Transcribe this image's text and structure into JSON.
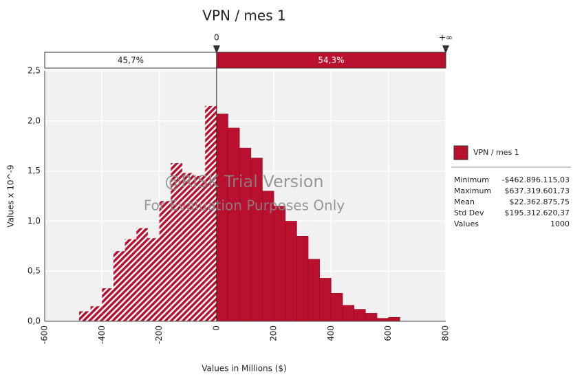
{
  "chart_data": {
    "type": "histogram",
    "title": "VPN / mes 1",
    "xlabel": "Values in Millions ($)",
    "ylabel": "Values x 10^-9",
    "bins": [
      -480,
      -440,
      -400,
      -360,
      -320,
      -280,
      -240,
      -200,
      -160,
      -120,
      -80,
      -40,
      0,
      40,
      80,
      120,
      160,
      200,
      240,
      280,
      320,
      360,
      400,
      440,
      480,
      520,
      560,
      600,
      640
    ],
    "values": [
      0.1,
      0.15,
      0.33,
      0.7,
      0.82,
      0.93,
      0.83,
      1.2,
      1.58,
      1.48,
      1.45,
      2.15,
      2.07,
      1.93,
      1.73,
      1.63,
      1.3,
      1.15,
      1.0,
      0.85,
      0.62,
      0.43,
      0.28,
      0.16,
      0.12,
      0.08,
      0.03,
      0.04
    ],
    "color": "#b8102e",
    "xlim": [
      -600,
      800
    ],
    "xticks": [
      -600,
      -400,
      -200,
      0,
      200,
      400,
      600,
      800
    ],
    "ylim": [
      0,
      2.5
    ],
    "yticks": [
      {
        "value": 0,
        "label": "0,0"
      },
      {
        "value": 0.5,
        "label": "0,5"
      },
      {
        "value": 1,
        "label": "1,0"
      },
      {
        "value": 1.5,
        "label": "1,5"
      },
      {
        "value": 2,
        "label": "2,0"
      },
      {
        "value": 2.5,
        "label": "2,5"
      }
    ],
    "grid": true,
    "delimiter": 0,
    "delimiter_labels": [
      "0",
      "+∞"
    ],
    "delimiter_percents": [
      45.7,
      54.3
    ],
    "delimiter_percent_labels": [
      "45,7%",
      "54,3%"
    ],
    "watermark": [
      "@RISK Trial Version",
      "For Evaluation Purposes Only"
    ],
    "legend": "VPN / mes 1",
    "stats": [
      [
        "Minimum",
        "-$462.896.115,03"
      ],
      [
        "Maximum",
        "$637.319.601,73"
      ],
      [
        "Mean",
        "$22.362.875,75"
      ],
      [
        "Std Dev",
        "$195.312.620,37"
      ],
      [
        "Values",
        "1000"
      ]
    ]
  }
}
